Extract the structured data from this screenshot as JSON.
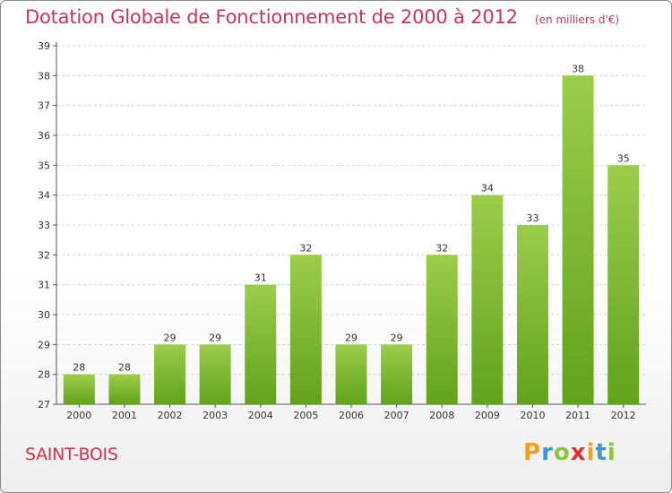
{
  "chart_data": {
    "type": "bar",
    "title": "Dotation Globale de Fonctionnement de 2000 à 2012",
    "unit_label": "(en milliers d'€)",
    "categories": [
      "2000",
      "2001",
      "2002",
      "2003",
      "2004",
      "2005",
      "2006",
      "2007",
      "2008",
      "2009",
      "2010",
      "2011",
      "2012"
    ],
    "values": [
      28,
      28,
      29,
      29,
      31,
      32,
      29,
      29,
      32,
      34,
      33,
      38,
      35
    ],
    "ylim": [
      27,
      39
    ],
    "yticks": [
      27,
      28,
      29,
      30,
      31,
      32,
      33,
      34,
      35,
      36,
      37,
      38,
      39
    ],
    "grid": "horizontal-dashed",
    "bar_color_top": "#9ccd4a",
    "bar_color_bottom": "#62a21a"
  },
  "footer": {
    "commune_name": "SAINT-BOIS",
    "logo_letters": [
      "P",
      "r",
      "o",
      "x",
      "i",
      "t",
      "i"
    ],
    "logo_colors": [
      "#f0a020",
      "#3a9ad8",
      "#8cc43c",
      "#d8342c",
      "#f0a020",
      "#3a9ad8",
      "#8cc43c"
    ]
  },
  "colors": {
    "accent": "#d4324c"
  }
}
